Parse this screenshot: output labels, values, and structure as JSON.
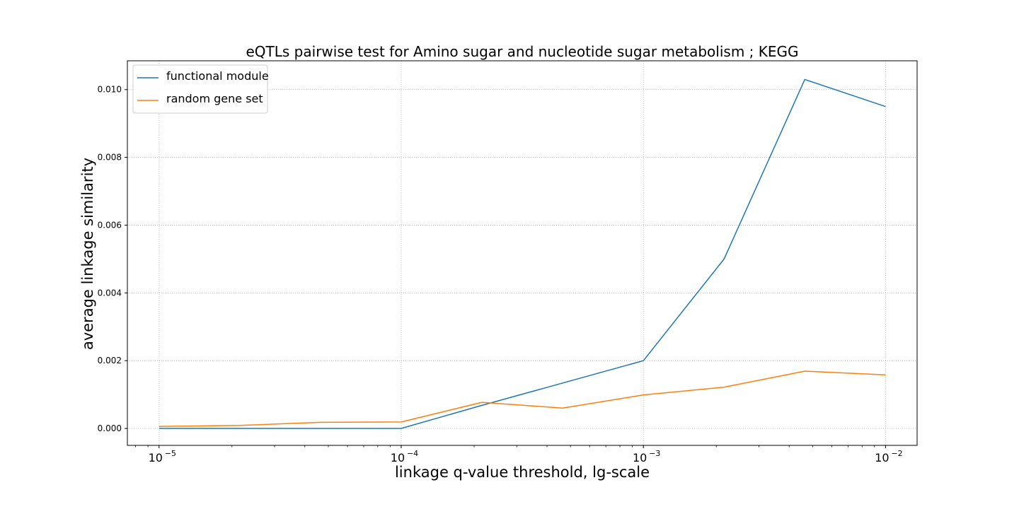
{
  "chart_data": {
    "type": "line",
    "title": "eQTLs pairwise test for Amino sugar and nucleotide sugar metabolism ; KEGG",
    "xlabel": "linkage q-value threshold, lg-scale",
    "ylabel": "average linkage similarity",
    "xscale": "log",
    "xlim": [
      7.4e-06,
      0.0135
    ],
    "ylim": [
      -0.0005,
      0.01085
    ],
    "grid": true,
    "legend_position": "top-left",
    "x": [
      1e-05,
      2.154e-05,
      4.642e-05,
      0.0001,
      0.0002154,
      0.0004642,
      0.001,
      0.002154,
      0.004642,
      0.01
    ],
    "series": [
      {
        "name": "functional module",
        "color": "#1f77b4",
        "values": [
          0.0,
          0.0,
          0.0,
          0.0,
          0.00068,
          0.00134,
          0.002,
          0.005,
          0.0103,
          0.0095
        ]
      },
      {
        "name": "random gene set",
        "color": "#ff7f0e",
        "values": [
          6e-05,
          9e-05,
          0.00018,
          0.00019,
          0.00077,
          0.0006,
          0.00099,
          0.00122,
          0.00169,
          0.00158
        ]
      }
    ],
    "yticks": [
      {
        "value": 0.0,
        "label": "0.000"
      },
      {
        "value": 0.002,
        "label": "0.002"
      },
      {
        "value": 0.004,
        "label": "0.004"
      },
      {
        "value": 0.006,
        "label": "0.006"
      },
      {
        "value": 0.008,
        "label": "0.008"
      },
      {
        "value": 0.01,
        "label": "0.010"
      }
    ],
    "xticks": [
      {
        "value": 1e-05,
        "base": "10",
        "exp": "−5"
      },
      {
        "value": 0.0001,
        "base": "10",
        "exp": "−4"
      },
      {
        "value": 0.001,
        "base": "10",
        "exp": "−3"
      },
      {
        "value": 0.01,
        "base": "10",
        "exp": "−2"
      }
    ]
  }
}
